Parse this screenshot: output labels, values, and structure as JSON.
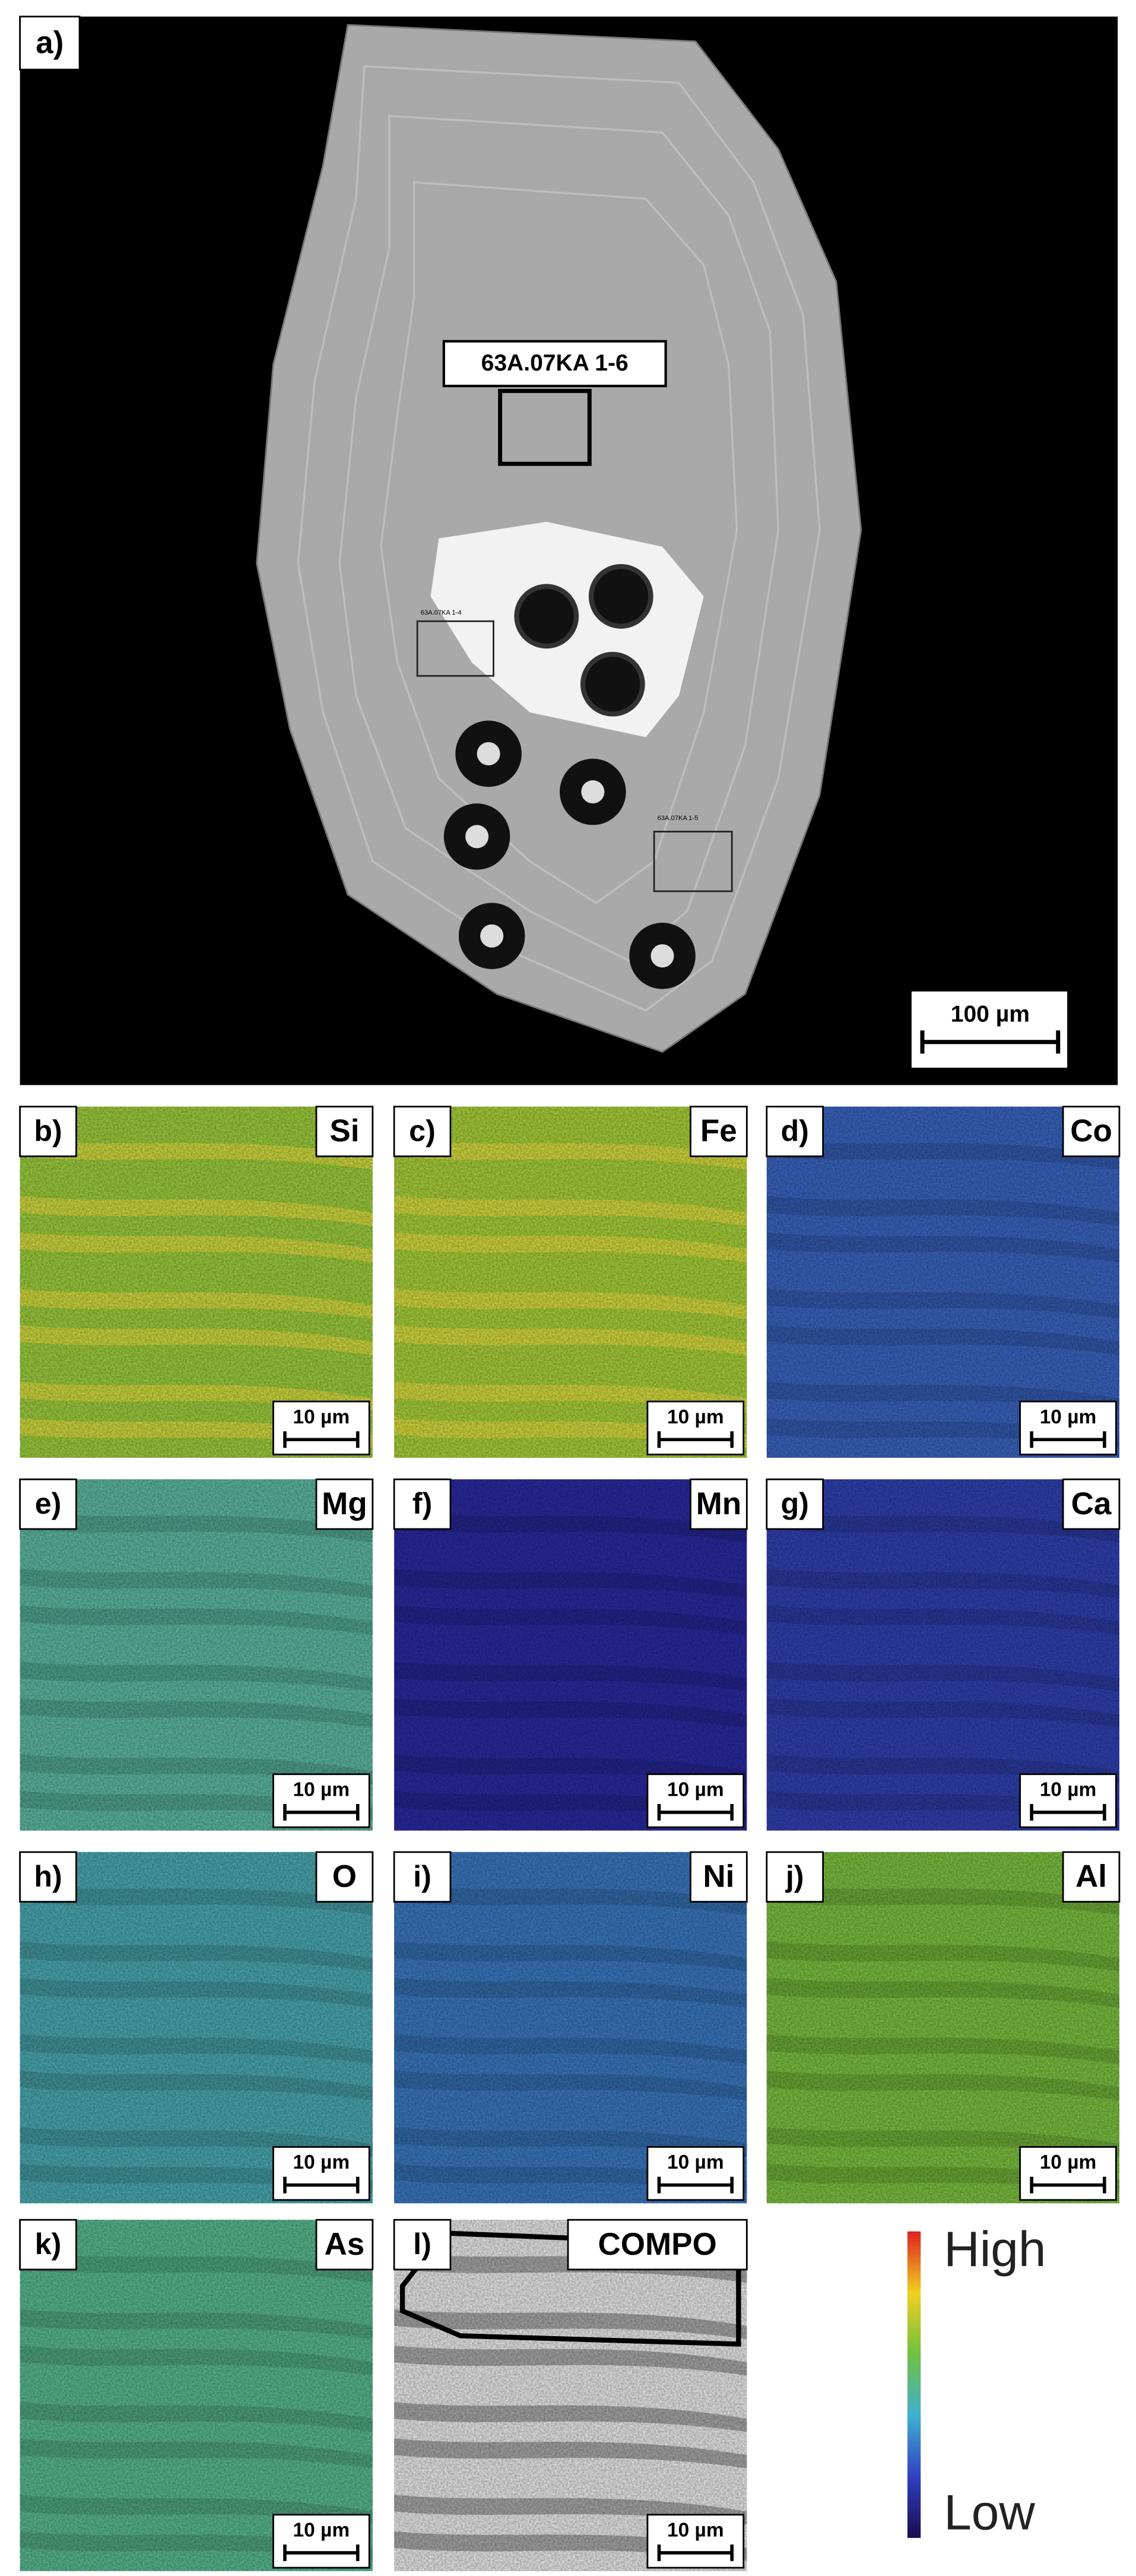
{
  "panel_a": {
    "label": "a)",
    "box_label": "63A.07KA 1-6",
    "small_labels": [
      "63A.07KA 1-4",
      "63A.07KA 1-5"
    ],
    "scale": "100 µm"
  },
  "maps": [
    {
      "label": "b)",
      "element": "Si",
      "scale": "10 µm",
      "color": "#9ccc3c"
    },
    {
      "label": "c)",
      "element": "Fe",
      "scale": "10 µm",
      "color": "#a8cf3a"
    },
    {
      "label": "d)",
      "element": "Co",
      "scale": "10 µm",
      "color": "#3a64c0"
    },
    {
      "label": "e)",
      "element": "Mg",
      "scale": "10 µm",
      "color": "#5cb8a0"
    },
    {
      "label": "f)",
      "element": "Mn",
      "scale": "10 µm",
      "color": "#2a2aa0"
    },
    {
      "label": "g)",
      "element": "Ca",
      "scale": "10 µm",
      "color": "#3040b0"
    },
    {
      "label": "h)",
      "element": "O",
      "scale": "10 µm",
      "color": "#4aa8b0"
    },
    {
      "label": "i)",
      "element": "Ni",
      "scale": "10 µm",
      "color": "#3a78c0"
    },
    {
      "label": "j)",
      "element": "Al",
      "scale": "10 µm",
      "color": "#7cc040"
    },
    {
      "label": "k)",
      "element": "As",
      "scale": "10 µm",
      "color": "#58b890"
    },
    {
      "label": "l)",
      "element": "COMPO",
      "scale": "10 µm",
      "color": "#e8e8e8"
    }
  ],
  "colorbar": {
    "high": "High",
    "low": "Low"
  }
}
